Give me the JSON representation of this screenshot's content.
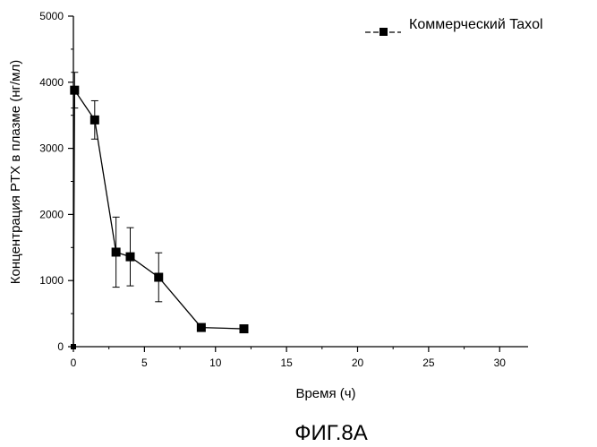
{
  "caption": "ФИГ.8А",
  "chart_data": {
    "type": "line",
    "title": "",
    "xlabel": "Время (ч)",
    "ylabel": "Концентрация PTX в плазме (нг/мл)",
    "xlim": [
      0,
      32
    ],
    "ylim": [
      0,
      5000
    ],
    "xticks": [
      0,
      5,
      10,
      15,
      20,
      25,
      30
    ],
    "yticks": [
      0,
      1000,
      2000,
      3000,
      4000,
      5000
    ],
    "grid": false,
    "legend_position": "top-right",
    "series": [
      {
        "name": "Коммерческий Taxol",
        "color": "#000000",
        "marker": "square",
        "x": [
          0,
          0.083,
          1.5,
          3,
          4,
          6,
          9,
          12
        ],
        "y": [
          0,
          3880,
          3430,
          1430,
          1360,
          1050,
          290,
          270
        ],
        "err_low": [
          0,
          270,
          290,
          530,
          440,
          370,
          0,
          0
        ],
        "err_high": [
          0,
          270,
          290,
          530,
          440,
          370,
          0,
          0
        ]
      }
    ]
  }
}
